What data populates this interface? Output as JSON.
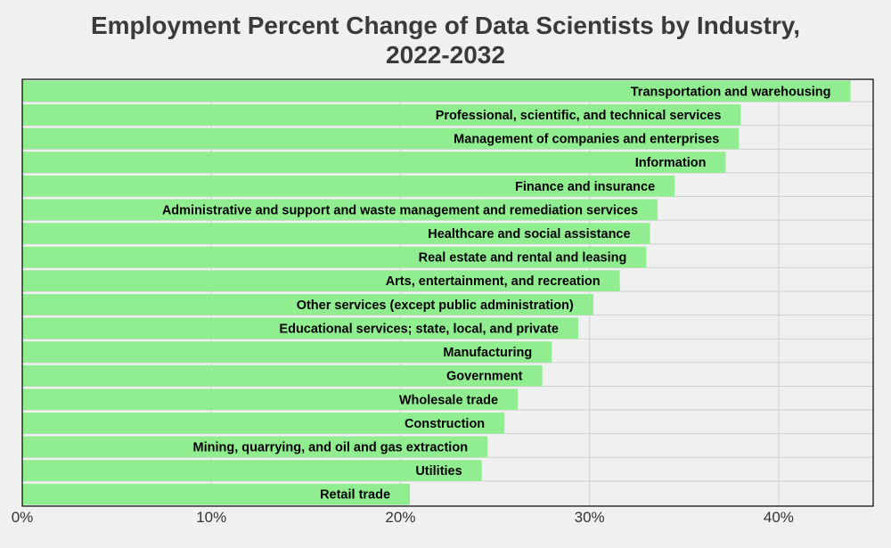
{
  "chart_data": {
    "type": "bar",
    "orientation": "horizontal",
    "title_line1": "Employment Percent Change of Data Scientists by Industry,",
    "title_line2": "2022-2032",
    "xlabel": "",
    "ylabel": "",
    "xlim": [
      0,
      45
    ],
    "xticks": [
      0,
      10,
      20,
      30,
      40
    ],
    "xtick_labels": [
      "0%",
      "10%",
      "20%",
      "30%",
      "40%"
    ],
    "grid": true,
    "bar_color": "#90ee90",
    "categories": [
      "Transportation and warehousing",
      "Professional, scientific, and technical services",
      "Management of companies and enterprises",
      "Information",
      "Finance and insurance",
      "Administrative and support and waste management and remediation services",
      "Healthcare and social assistance",
      "Real estate and rental and leasing",
      "Arts, entertainment, and recreation",
      "Other services (except public administration)",
      "Educational services; state, local, and private",
      "Manufacturing",
      "Government",
      "Wholesale trade",
      "Construction",
      "Mining, quarrying, and oil and gas extraction",
      "Utilities",
      "Retail trade"
    ],
    "values": [
      43.8,
      38.0,
      37.9,
      37.2,
      34.5,
      33.6,
      33.2,
      33.0,
      31.6,
      30.2,
      29.4,
      28.0,
      27.5,
      26.2,
      25.5,
      24.6,
      24.3,
      20.5
    ]
  }
}
